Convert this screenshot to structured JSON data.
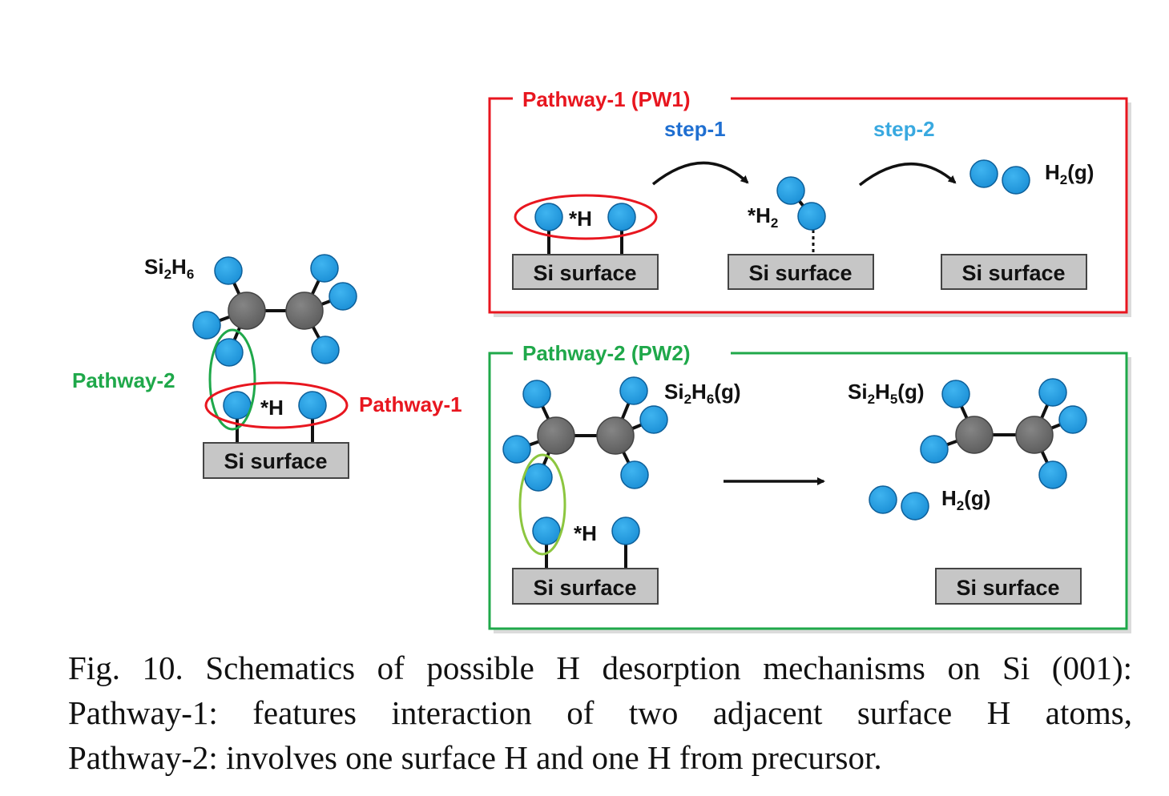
{
  "colors": {
    "pathway1": "#e8161f",
    "pathway2": "#1fa84a",
    "pathway2_light": "#8cc63f",
    "step1": "#1f6fd1",
    "step2": "#39a9e0",
    "h_atom": "#1b9de2",
    "si_atom": "#6d6d6d",
    "surface_fill": "#c6c6c6"
  },
  "left_panel": {
    "molecule_label_main": "Si",
    "molecule_label_sub1": "2",
    "molecule_label_mid": "H",
    "molecule_label_sub2": "6",
    "surface_h_label": "*H",
    "pathway2_label": "Pathway-2",
    "pathway1_label": "Pathway-1",
    "surface_label": "Si surface"
  },
  "pw1_panel": {
    "title": "Pathway-1 (PW1)",
    "step1_label": "step-1",
    "step2_label": "step-2",
    "surface_h_label": "*H",
    "adsorbed_h2_main": "*H",
    "adsorbed_h2_sub": "2",
    "h2_gas_main": "H",
    "h2_gas_sub": "2",
    "h2_gas_suffix": "(g)",
    "surface_labels": [
      "Si surface",
      "Si surface",
      "Si surface"
    ]
  },
  "pw2_panel": {
    "title": "Pathway-2 (PW2)",
    "reactant_main": "Si",
    "reactant_sub1": "2",
    "reactant_mid": "H",
    "reactant_sub2": "6",
    "reactant_suffix": "(g)",
    "product_main": "Si",
    "product_sub1": "2",
    "product_mid": "H",
    "product_sub2": "5",
    "product_suffix": "(g)",
    "h2_gas_main": "H",
    "h2_gas_sub": "2",
    "h2_gas_suffix": "(g)",
    "surface_h_label": "*H",
    "surface_labels": [
      "Si surface",
      "Si surface"
    ]
  },
  "caption": {
    "line1": "Fig. 10. Schematics of possible H desorption mechanisms on Si (001):",
    "line2": "Pathway-1: features interaction of two adjacent surface H atoms,",
    "line3": "Pathway-2: involves one surface H and one H from precursor."
  }
}
